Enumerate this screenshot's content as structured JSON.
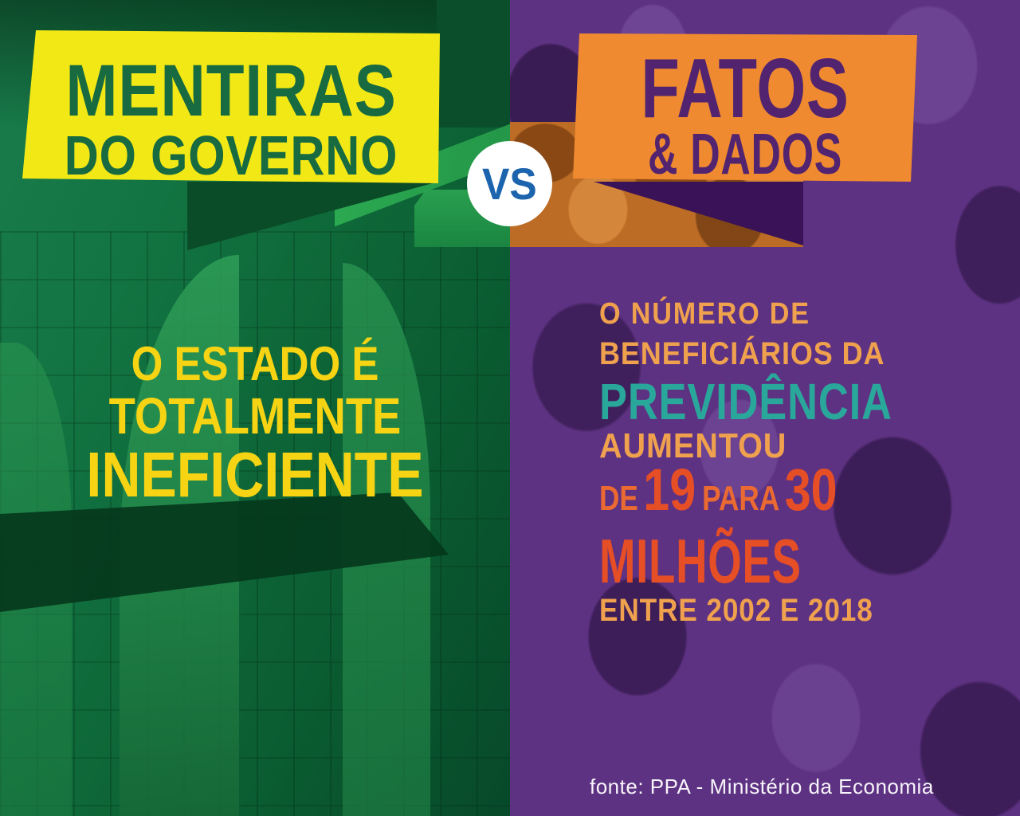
{
  "vs_label": "VS",
  "left": {
    "banner": {
      "title": "MENTIRAS",
      "subtitle": "DO GOVERNO"
    },
    "claim": {
      "line1": "O ESTADO É",
      "line2": "TOTALMENTE",
      "line3": "INEFICIENTE"
    }
  },
  "right": {
    "banner": {
      "title": "FATOS",
      "subtitle": "& DADOS"
    },
    "fact": {
      "line1": "O NÚMERO DE",
      "line2": "BENEFICIÁRIOS DA",
      "line3": "PREVIDÊNCIA",
      "line4": "AUMENTOU",
      "line5": {
        "de": "DE",
        "n1": "19",
        "para": "PARA",
        "n2": "30"
      },
      "line6": "MILHÕES",
      "line7": "ENTRE 2002 E 2018"
    },
    "source": "fonte: PPA - Ministério da Economia"
  },
  "colors": {
    "green_base": "#11753f",
    "green_dark": "#0a4c28",
    "green_deep": "#05381c",
    "green_bright": "#2cab52",
    "yellow": "#f2e816",
    "green_text": "#186a41",
    "quote_yellow": "#f6d414",
    "purple_base": "#5e3282",
    "purple_deep": "#3a1257",
    "orange": "#ef8a30",
    "purple_text": "#522470",
    "orange_tint": "#bc6c24",
    "blue": "#1c64ad",
    "teal": "#2aa79b",
    "orange_text": "#efa14e",
    "redorange": "#e64e25",
    "redorange_light": "#eb6a31",
    "source_white": "#f7f4fa"
  }
}
